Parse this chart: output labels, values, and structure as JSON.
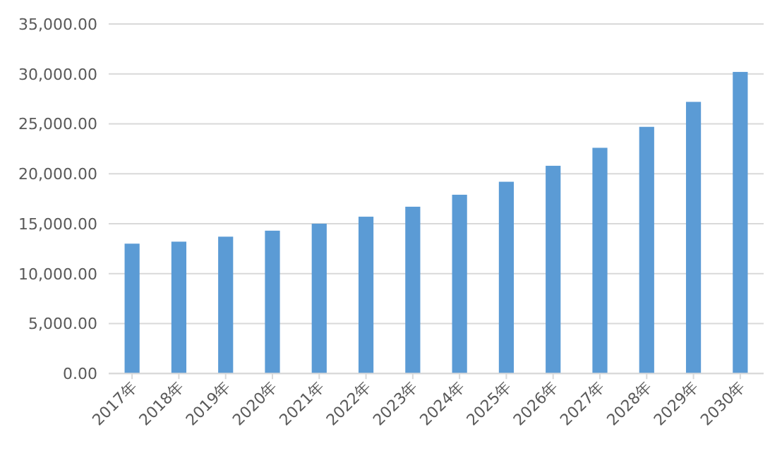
{
  "chart_data": {
    "type": "bar",
    "categories": [
      "2017年",
      "2018年",
      "2019年",
      "2020年",
      "2021年",
      "2022年",
      "2023年",
      "2024年",
      "2025年",
      "2026年",
      "2027年",
      "2028年",
      "2029年",
      "2030年"
    ],
    "values": [
      13000,
      13200,
      13700,
      14300,
      15000,
      15700,
      16700,
      17900,
      19200,
      20800,
      22600,
      24700,
      27200,
      30200
    ],
    "color": "#5b9bd5",
    "ylim": [
      0,
      35000
    ],
    "yticks": [
      {
        "value": 0,
        "label": "0.00"
      },
      {
        "value": 5000,
        "label": "5,000.00"
      },
      {
        "value": 10000,
        "label": "10,000.00"
      },
      {
        "value": 15000,
        "label": "15,000.00"
      },
      {
        "value": 20000,
        "label": "20,000.00"
      },
      {
        "value": 25000,
        "label": "25,000.00"
      },
      {
        "value": 30000,
        "label": "30,000.00"
      },
      {
        "value": 35000,
        "label": "35,000.00"
      }
    ],
    "grid": "y"
  }
}
